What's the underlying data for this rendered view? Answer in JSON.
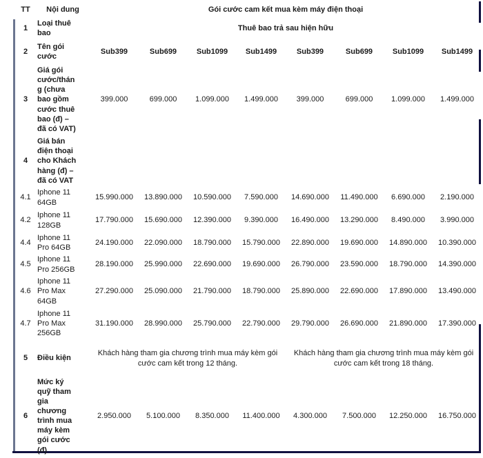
{
  "colors": {
    "text": "#1a1a1a",
    "border_navy": "#10103f",
    "border_slate": "#6b7590"
  },
  "table": {
    "header": {
      "tt": "TT",
      "noi_dung": "Nội dung",
      "group_title": "Gói cước cam kết mua kèm máy điện thoại"
    },
    "rows": [
      {
        "tt": "1",
        "label": "Loại thuê bao",
        "bold": true,
        "span_all": "Thuê bao trả sau hiện hữu",
        "span_bold": true
      },
      {
        "tt": "2",
        "label": "Tên gói cước",
        "bold": true,
        "cells_bold": true,
        "cells": [
          "Sub399",
          "Sub699",
          "Sub1099",
          "Sub1499",
          "Sub399",
          "Sub699",
          "Sub1099",
          "Sub1499"
        ]
      },
      {
        "tt": "3",
        "label": "Giá gói cước/tháng (chưa bao gồm cước thuê bao (đ) – đã có VAT)",
        "bold": true,
        "cells": [
          "399.000",
          "699.000",
          "1.099.000",
          "1.499.000",
          "399.000",
          "699.000",
          "1.099.000",
          "1.499.000"
        ]
      },
      {
        "tt": "4",
        "label": "Giá bán điện thoại cho Khách hàng (đ) – đã có VAT",
        "bold": true,
        "cells": [
          "",
          "",
          "",
          "",
          "",
          "",
          "",
          ""
        ]
      },
      {
        "tt": "4.1",
        "label": "Iphone 11 64GB",
        "bold": false,
        "cells": [
          "15.990.000",
          "13.890.000",
          "10.590.000",
          "7.590.000",
          "14.690.000",
          "11.490.000",
          "6.690.000",
          "2.190.000"
        ]
      },
      {
        "tt": "4.2",
        "label": "Iphone 11 128GB",
        "bold": false,
        "cells": [
          "17.790.000",
          "15.690.000",
          "12.390.000",
          "9.390.000",
          "16.490.000",
          "13.290.000",
          "8.490.000",
          "3.990.000"
        ]
      },
      {
        "tt": "4.4",
        "label": "Iphone 11 Pro 64GB",
        "bold": false,
        "cells": [
          "24.190.000",
          "22.090.000",
          "18.790.000",
          "15.790.000",
          "22.890.000",
          "19.690.000",
          "14.890.000",
          "10.390.000"
        ]
      },
      {
        "tt": "4.5",
        "label": "Iphone 11 Pro 256GB",
        "bold": false,
        "cells": [
          "28.190.000",
          "25.990.000",
          "22.690.000",
          "19.690.000",
          "26.790.000",
          "23.590.000",
          "18.790.000",
          "14.390.000"
        ]
      },
      {
        "tt": "4.6",
        "label": "Iphone 11 Pro Max 64GB",
        "bold": false,
        "cells": [
          "27.290.000",
          "25.090.000",
          "21.790.000",
          "18.790.000",
          "25.890.000",
          "22.690.000",
          "17.890.000",
          "13.490.000"
        ]
      },
      {
        "tt": "4.7",
        "label": "Iphone 11 Pro Max 256GB",
        "bold": false,
        "cells": [
          "31.190.000",
          "28.990.000",
          "25.790.000",
          "22.790.000",
          "29.790.000",
          "26.690.000",
          "21.890.000",
          "17.390.000"
        ]
      },
      {
        "tt": "5",
        "label": "Điều kiện",
        "bold": true,
        "half_spans": [
          "Khách hàng tham gia chương trình mua máy kèm gói cước cam kết trong 12 tháng.",
          "Khách hàng tham gia chương trình mua máy kèm gói cước cam kết trong 18 tháng."
        ]
      },
      {
        "tt": "6",
        "label": "Mức ký quỹ tham gia chương trình mua máy kèm gói cước (đ)",
        "bold": true,
        "cells": [
          "2.950.000",
          "5.100.000",
          "8.350.000",
          "11.400.000",
          "4.300.000",
          "7.500.000",
          "12.250.000",
          "16.750.000"
        ]
      }
    ]
  }
}
